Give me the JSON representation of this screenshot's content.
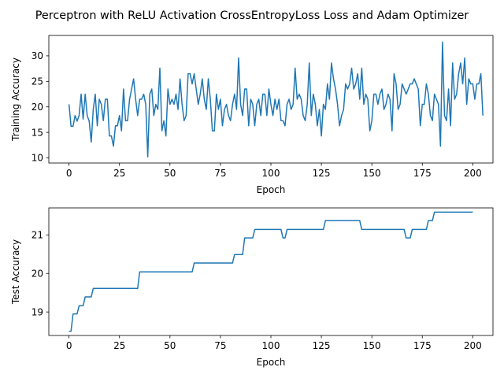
{
  "title": "Perceptron with ReLU Activation CrossEntropyLoss Loss and Adam Optimizer",
  "chart_data": [
    {
      "type": "line",
      "xlabel": "Epoch",
      "ylabel": "Training Accuracy",
      "xlim": [
        -10,
        210
      ],
      "ylim": [
        9.0,
        34.0
      ],
      "xticks": [
        0,
        25,
        50,
        75,
        100,
        125,
        150,
        175,
        200
      ],
      "yticks": [
        10,
        15,
        20,
        25,
        30
      ],
      "color": "#1f77b4",
      "x_start": 0,
      "x_step": 1,
      "values": [
        20.5,
        16.2,
        16.2,
        18.3,
        17.2,
        18.3,
        22.5,
        17.6,
        22.5,
        18.3,
        17.2,
        13.1,
        19.5,
        22.5,
        16.3,
        21.5,
        20.5,
        17.3,
        21.5,
        21.5,
        14.3,
        14.3,
        12.3,
        16.3,
        16.3,
        18.3,
        15.3,
        23.5,
        17.3,
        17.3,
        21.5,
        23.5,
        25.5,
        21.5,
        18.3,
        21.5,
        21.5,
        22.5,
        20.5,
        10.2,
        22.5,
        23.5,
        18.3,
        20.5,
        19.5,
        27.6,
        15.3,
        17.3,
        14.3,
        23.5,
        20.5,
        21.5,
        20.5,
        22.5,
        19.5,
        25.5,
        20.5,
        17.3,
        18.3,
        26.5,
        26.5,
        24.5,
        26.5,
        23.5,
        20.5,
        22.5,
        25.5,
        21.5,
        19.5,
        25.5,
        21.5,
        15.3,
        15.3,
        22.5,
        19.5,
        21.5,
        16.3,
        19.5,
        20.5,
        18.3,
        17.3,
        20.5,
        22.5,
        19.5,
        29.6,
        20.5,
        18.3,
        23.5,
        23.5,
        16.3,
        21.5,
        20.5,
        16.3,
        20.5,
        21.5,
        18.3,
        22.5,
        22.5,
        18.3,
        23.5,
        20.5,
        18.3,
        21.5,
        19.5,
        21.5,
        17.3,
        17.3,
        16.3,
        20.5,
        21.5,
        19.5,
        20.5,
        27.6,
        21.5,
        22.5,
        21.5,
        18.3,
        17.3,
        20.5,
        28.6,
        18.3,
        22.5,
        20.5,
        16.3,
        19.5,
        14.3,
        20.5,
        19.5,
        24.5,
        21.5,
        28.6,
        25.5,
        23.5,
        20.5,
        16.3,
        18.3,
        19.5,
        24.5,
        23.5,
        24.5,
        27.6,
        23.5,
        24.5,
        26.5,
        21.5,
        27.6,
        20.5,
        22.5,
        21.5,
        15.3,
        17.3,
        22.5,
        22.5,
        20.5,
        22.5,
        23.5,
        19.5,
        20.5,
        22.5,
        21.5,
        15.3,
        26.5,
        24.5,
        19.5,
        20.5,
        24.5,
        23.5,
        22.5,
        23.5,
        24.5,
        24.5,
        25.5,
        24.5,
        23.5,
        16.3,
        20.5,
        20.5,
        24.5,
        22.5,
        18.3,
        17.3,
        22.5,
        21.5,
        20.5,
        12.3,
        32.7,
        18.3,
        17.3,
        23.5,
        16.3,
        28.6,
        21.5,
        22.5,
        26.5,
        28.6,
        24.5,
        29.6,
        20.5,
        25.5,
        24.5,
        24.5,
        21.5,
        24.5,
        24.5,
        26.5,
        18.3
      ]
    },
    {
      "type": "line",
      "xlabel": "Epoch",
      "ylabel": "Test Accuracy",
      "xlim": [
        -10,
        210
      ],
      "ylim": [
        18.39,
        21.7
      ],
      "xticks": [
        0,
        25,
        50,
        75,
        100,
        125,
        150,
        175,
        200
      ],
      "yticks": [
        19,
        20,
        21
      ],
      "color": "#1f77b4",
      "x_start": 0,
      "x_step": 1,
      "values": [
        18.5,
        18.5,
        18.95,
        18.95,
        18.95,
        19.16,
        19.16,
        19.16,
        19.39,
        19.39,
        19.39,
        19.39,
        19.61,
        19.61,
        19.61,
        19.61,
        19.61,
        19.61,
        19.61,
        19.61,
        19.61,
        19.61,
        19.61,
        19.61,
        19.61,
        19.61,
        19.61,
        19.61,
        19.61,
        19.61,
        19.61,
        19.61,
        19.61,
        19.61,
        19.61,
        20.04,
        20.04,
        20.04,
        20.04,
        20.04,
        20.04,
        20.04,
        20.04,
        20.04,
        20.04,
        20.04,
        20.04,
        20.04,
        20.04,
        20.04,
        20.04,
        20.04,
        20.04,
        20.04,
        20.04,
        20.04,
        20.04,
        20.04,
        20.04,
        20.04,
        20.04,
        20.04,
        20.27,
        20.27,
        20.27,
        20.27,
        20.27,
        20.27,
        20.27,
        20.27,
        20.27,
        20.27,
        20.27,
        20.27,
        20.27,
        20.27,
        20.27,
        20.27,
        20.27,
        20.27,
        20.27,
        20.27,
        20.49,
        20.49,
        20.49,
        20.49,
        20.49,
        20.92,
        20.92,
        20.92,
        20.92,
        20.92,
        21.14,
        21.14,
        21.14,
        21.14,
        21.14,
        21.14,
        21.14,
        21.14,
        21.14,
        21.14,
        21.14,
        21.14,
        21.14,
        21.14,
        20.92,
        20.92,
        21.14,
        21.14,
        21.14,
        21.14,
        21.14,
        21.14,
        21.14,
        21.14,
        21.14,
        21.14,
        21.14,
        21.14,
        21.14,
        21.14,
        21.14,
        21.14,
        21.14,
        21.14,
        21.14,
        21.37,
        21.37,
        21.37,
        21.37,
        21.37,
        21.37,
        21.37,
        21.37,
        21.37,
        21.37,
        21.37,
        21.37,
        21.37,
        21.37,
        21.37,
        21.37,
        21.37,
        21.37,
        21.14,
        21.14,
        21.14,
        21.14,
        21.14,
        21.14,
        21.14,
        21.14,
        21.14,
        21.14,
        21.14,
        21.14,
        21.14,
        21.14,
        21.14,
        21.14,
        21.14,
        21.14,
        21.14,
        21.14,
        21.14,
        21.14,
        20.92,
        20.92,
        20.92,
        21.14,
        21.14,
        21.14,
        21.14,
        21.14,
        21.14,
        21.14,
        21.14,
        21.37,
        21.37,
        21.37,
        21.59,
        21.59,
        21.59,
        21.59,
        21.59,
        21.59,
        21.59,
        21.59,
        21.59,
        21.59,
        21.59,
        21.59,
        21.59,
        21.59,
        21.59,
        21.59,
        21.59,
        21.59,
        21.59,
        21.59
      ]
    }
  ]
}
